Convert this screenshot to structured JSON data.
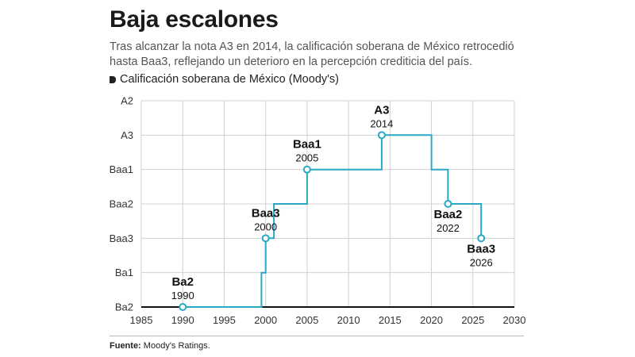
{
  "header": {
    "title": "Baja escalones",
    "subtitle": "Tras alcanzar la nota A3 en 2014, la calificación soberana de México retrocedió hasta Baa3, reflejando un deterioro en la percepción crediticia del país.",
    "series_label": "Calificación soberana de México (Moody's)"
  },
  "source": {
    "label": "Fuente:",
    "text": "Moody's Ratings."
  },
  "colors": {
    "line": "#2aa9c5",
    "grid": "#d0d0d0",
    "axis": "#111111"
  },
  "chart_data": {
    "type": "line",
    "step": true,
    "y_categories": [
      "Ba2",
      "Ba1",
      "Baa3",
      "Baa2",
      "Baa1",
      "A3",
      "A2"
    ],
    "x_ticks": [
      1985,
      1990,
      1995,
      2000,
      2005,
      2010,
      2015,
      2020,
      2025,
      2030
    ],
    "xlim": [
      1985,
      2030
    ],
    "grid": true,
    "series": [
      {
        "points": [
          {
            "x": 1990,
            "y": "Ba2"
          },
          {
            "x": 1999.5,
            "y": "Ba2"
          },
          {
            "x": 1999.5,
            "y": "Ba1"
          },
          {
            "x": 2000,
            "y": "Ba1"
          },
          {
            "x": 2000,
            "y": "Baa3"
          },
          {
            "x": 2001,
            "y": "Baa3"
          },
          {
            "x": 2001,
            "y": "Baa2"
          },
          {
            "x": 2005,
            "y": "Baa2"
          },
          {
            "x": 2005,
            "y": "Baa1"
          },
          {
            "x": 2014,
            "y": "Baa1"
          },
          {
            "x": 2014,
            "y": "A3"
          },
          {
            "x": 2020,
            "y": "A3"
          },
          {
            "x": 2020,
            "y": "Baa1"
          },
          {
            "x": 2022,
            "y": "Baa1"
          },
          {
            "x": 2022,
            "y": "Baa2"
          },
          {
            "x": 2026,
            "y": "Baa2"
          },
          {
            "x": 2026,
            "y": "Baa3"
          }
        ]
      }
    ],
    "annotations": [
      {
        "x": 1990,
        "y": "Ba2",
        "rating": "Ba2",
        "year": "1990",
        "pos": "above"
      },
      {
        "x": 2000,
        "y": "Baa3",
        "rating": "Baa3",
        "year": "2000",
        "pos": "above"
      },
      {
        "x": 2005,
        "y": "Baa1",
        "rating": "Baa1",
        "year": "2005",
        "pos": "above"
      },
      {
        "x": 2014,
        "y": "A3",
        "rating": "A3",
        "year": "2014",
        "pos": "above"
      },
      {
        "x": 2022,
        "y": "Baa2",
        "rating": "Baa2",
        "year": "2022",
        "pos": "below"
      },
      {
        "x": 2026,
        "y": "Baa3",
        "rating": "Baa3",
        "year": "2026",
        "pos": "below"
      }
    ]
  }
}
